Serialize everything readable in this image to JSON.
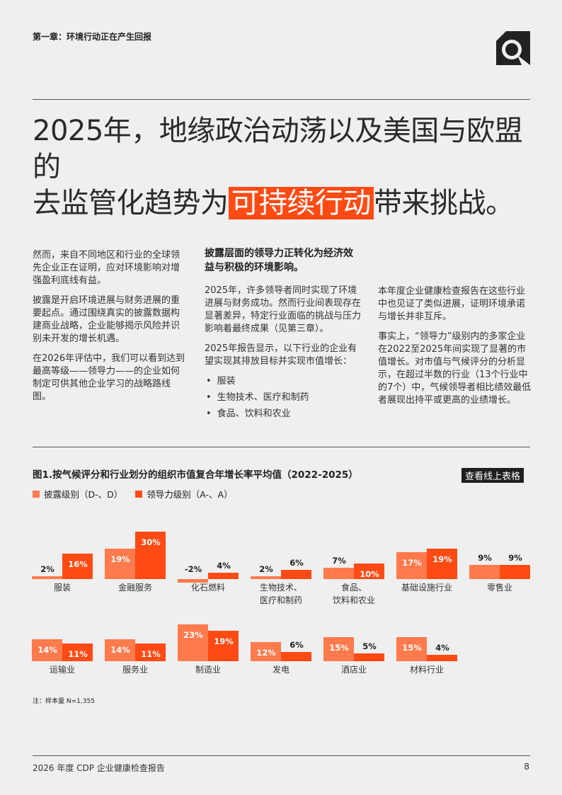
{
  "header": {
    "chapter": "第一章：环境行动正在产生回报"
  },
  "title": {
    "part1": "2025年，地缘政治动荡以及美国与欧盟的",
    "part2": "去监管化趋势为",
    "highlight": "可持续行动",
    "part3": "带来挑战。"
  },
  "col1": {
    "p1": "然而，来自不同地区和行业的全球领先企业正在证明，应对环境影响对增强盈利底线有益。",
    "p2": "披露是开启环境进展与财务进展的重要起点。通过围绕真实的披露数据构建商业战略，企业能够揭示风险并识别未开发的增长机遇。",
    "p3": "在2026年评估中，我们可以看到达到最高等级——领导力——的企业如何制定可供其他企业学习的战略路线图。"
  },
  "col2": {
    "heading": "披露层面的领导力正转化为经济效益与积极的环境影响。",
    "p1": "2025年，许多领导者同时实现了环境进展与财务成功。然而行业间表现存在显著差异，特定行业面临的挑战与压力影响着最终成果（见第三章）。",
    "p2": "2025年报告显示，以下行业的企业有望实现其排放目标并实现市值增长：",
    "bullets": [
      "服装",
      "生物技术、医疗和制药",
      "食品、饮料和农业"
    ]
  },
  "col3": {
    "p1": "本年度企业健康检查报告在这些行业中也见证了类似进展，证明环境承诺与增长并非互斥。",
    "p2": "事实上，“领导力”级别内的多家企业在2022至2025年间实现了显著的市值增长。对市值与气候评分的分析显示，在超过半数的行业（13个行业中的7个）中，气候领导者相比绩效最低者展现出持平或更高的业绩增长。"
  },
  "figure": {
    "title": "图1.按气候评分和行业划分的组织市值复合年增长率平均值（2022-2025）",
    "online_button": "查看线上表格",
    "note": "注：样本量 N=1,355"
  },
  "colors": {
    "disclosure": "#ff7a4d",
    "leadership": "#ff4a14"
  },
  "chart_data": {
    "type": "bar",
    "title": "图1.按气候评分和行业划分的组织市值复合年增长率平均值（2022-2025）",
    "unit": "%",
    "legend": [
      "披露级别（D-、D）",
      "领导力级别（A-、A）"
    ],
    "legend_position": "top-left",
    "grid": false,
    "categories": [
      "服装",
      "金融服务",
      "化石燃料",
      "生物技术、医疗和制药",
      "食品、饮料和农业",
      "基础设施行业",
      "零售业",
      "运输业",
      "服务业",
      "制造业",
      "发电",
      "酒店业",
      "材料行业"
    ],
    "category_lines": [
      [
        "服装"
      ],
      [
        "金融服务"
      ],
      [
        "化石燃料"
      ],
      [
        "生物技术、",
        "医疗和制药"
      ],
      [
        "食品、",
        "饮料和农业"
      ],
      [
        "基础设施行业"
      ],
      [
        "零售业"
      ],
      [
        "运输业"
      ],
      [
        "服务业"
      ],
      [
        "制造业"
      ],
      [
        "发电"
      ],
      [
        "酒店业"
      ],
      [
        "材料行业"
      ]
    ],
    "series": [
      {
        "name": "披露级别（D-、D）",
        "values": [
          2,
          19,
          -2,
          2,
          7,
          17,
          9,
          14,
          14,
          23,
          12,
          15,
          15
        ]
      },
      {
        "name": "领导力级别（A-、A）",
        "values": [
          16,
          30,
          4,
          6,
          10,
          19,
          9,
          11,
          11,
          19,
          6,
          5,
          4
        ]
      }
    ],
    "value_labels": {
      "disclosure": [
        "2%",
        "19%",
        "-2%",
        "2%",
        "7%",
        "17%",
        "9%",
        "14%",
        "14%",
        "23%",
        "12%",
        "15%",
        "15%"
      ],
      "leadership": [
        "16%",
        "30%",
        "4%",
        "6%",
        "10%",
        "19%",
        "9%",
        "11%",
        "11%",
        "19%",
        "6%",
        "5%",
        "4%"
      ]
    }
  },
  "footer": {
    "report": "2026 年度 CDP 企业健康检查报告",
    "page": "8"
  }
}
